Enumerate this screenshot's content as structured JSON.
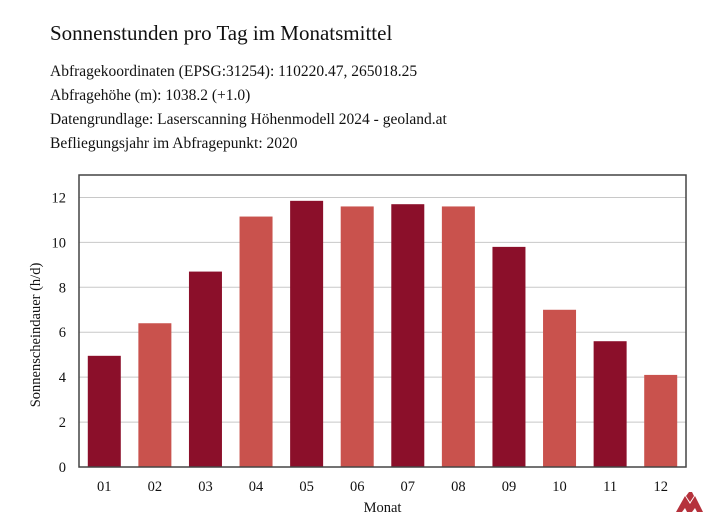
{
  "title": "Sonnenstunden pro Tag im Monatsmittel",
  "info": {
    "coords": "Abfragekoordinaten (EPSG:31254): 110220.47, 265018.25",
    "height": "Abfragehöhe (m): 1038.2 (+1.0)",
    "source": "Datengrundlage: Laserscanning Höhenmodell 2024 - geoland.at",
    "year": "Befliegungsjahr im Abfragepunkt: 2020"
  },
  "colors": {
    "dark_bar": "#8b0f2a",
    "light_bar": "#c9524d",
    "grid": "#c8c8c8",
    "frame": "#444444",
    "logo": "#b5323c"
  },
  "logo_icon": "geoland-logo-icon",
  "chart_data": {
    "type": "bar",
    "categories": [
      "01",
      "02",
      "03",
      "04",
      "05",
      "06",
      "07",
      "08",
      "09",
      "10",
      "11",
      "12"
    ],
    "values": [
      4.95,
      6.4,
      8.7,
      11.15,
      11.85,
      11.6,
      11.7,
      11.6,
      9.8,
      7.0,
      5.6,
      4.1
    ],
    "bar_colors": [
      "dark",
      "light",
      "dark",
      "light",
      "dark",
      "light",
      "dark",
      "light",
      "dark",
      "light",
      "dark",
      "light"
    ],
    "title": "Sonnenstunden pro Tag im Monatsmittel",
    "xlabel": "Monat",
    "ylabel": "Sonnenscheindauer (h/d)",
    "ylim": [
      0,
      13
    ],
    "yticks": [
      0,
      2,
      4,
      6,
      8,
      10,
      12
    ],
    "grid": true,
    "legend": "none"
  }
}
